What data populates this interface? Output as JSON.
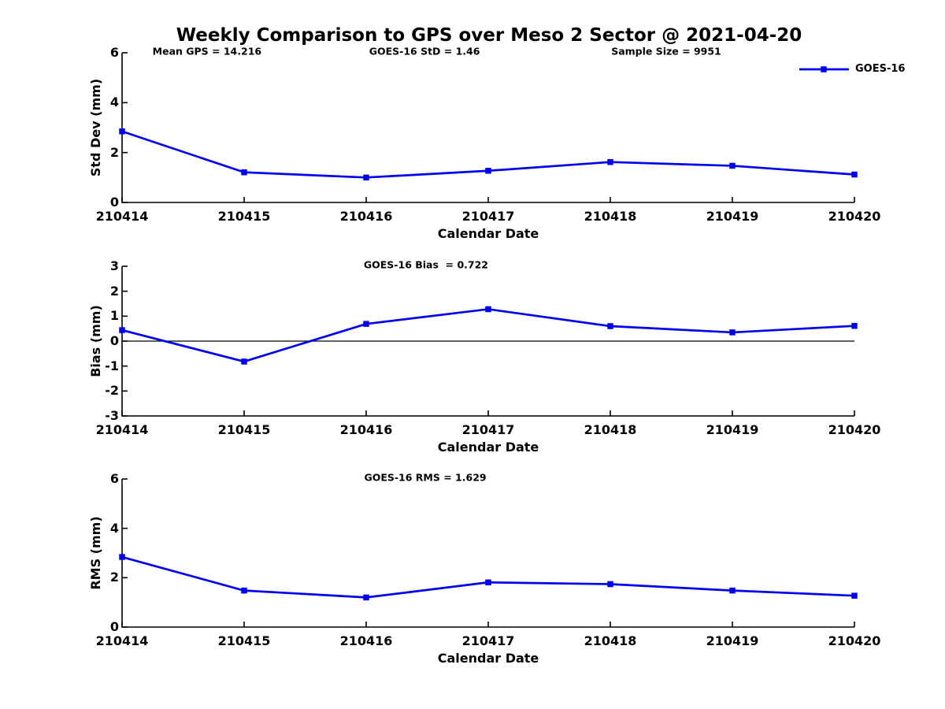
{
  "title": "Weekly Comparison to GPS over Meso 2 Sector @ 2021-04-20",
  "legend": {
    "label": "GOES-16",
    "position": "top-right"
  },
  "colors": {
    "line": "#0000F0",
    "marker": "#0000F0",
    "axis": "#000000",
    "text": "#000000",
    "background": "#ffffff"
  },
  "chart_data": [
    {
      "type": "line",
      "ylabel": "Std Dev (mm)",
      "xlabel": "Calendar Date",
      "categories": [
        "210414",
        "210415",
        "210416",
        "210417",
        "210418",
        "210419",
        "210420"
      ],
      "series": [
        {
          "name": "GOES-16",
          "values": [
            2.85,
            1.21,
            1.0,
            1.27,
            1.62,
            1.47,
            1.12
          ]
        }
      ],
      "ylim": [
        0,
        6
      ],
      "yticks": [
        0,
        2,
        4,
        6
      ],
      "grid": false,
      "zero_line": false,
      "annotations": [
        {
          "text": "Mean GPS = 14.216",
          "xfrac": 0.116
        },
        {
          "text": "GOES-16 StD = 1.46",
          "xfrac": 0.413
        },
        {
          "text": "Sample Size = 9951",
          "xfrac": 0.743
        }
      ]
    },
    {
      "type": "line",
      "ylabel": "Bias (mm)",
      "xlabel": "Calendar Date",
      "categories": [
        "210414",
        "210415",
        "210416",
        "210417",
        "210418",
        "210419",
        "210420"
      ],
      "series": [
        {
          "name": "GOES-16",
          "values": [
            0.44,
            -0.82,
            0.69,
            1.28,
            0.6,
            0.35,
            0.61
          ]
        }
      ],
      "ylim": [
        -3,
        3
      ],
      "yticks": [
        3,
        2,
        1,
        0,
        -1,
        -2,
        -3
      ],
      "grid": false,
      "zero_line": true,
      "annotations": [
        {
          "text": "GOES-16 Bias  = 0.722",
          "xfrac": 0.415
        }
      ]
    },
    {
      "type": "line",
      "ylabel": "RMS (mm)",
      "xlabel": "Calendar Date",
      "categories": [
        "210414",
        "210415",
        "210416",
        "210417",
        "210418",
        "210419",
        "210420"
      ],
      "series": [
        {
          "name": "GOES-16",
          "values": [
            2.84,
            1.48,
            1.2,
            1.81,
            1.74,
            1.48,
            1.27
          ]
        }
      ],
      "ylim": [
        0,
        6
      ],
      "yticks": [
        0,
        2,
        4,
        6
      ],
      "grid": false,
      "zero_line": false,
      "annotations": [
        {
          "text": "GOES-16 RMS = 1.629",
          "xfrac": 0.414
        }
      ]
    }
  ]
}
